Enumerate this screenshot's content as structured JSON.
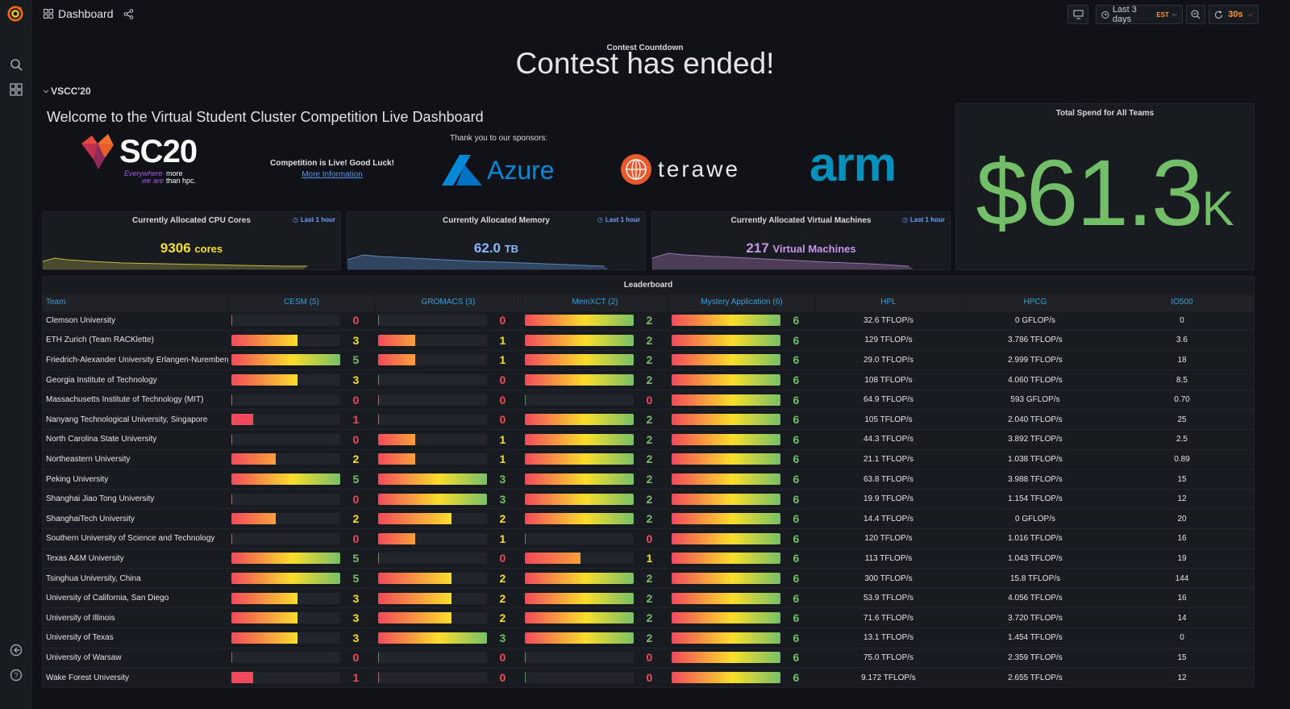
{
  "header": {
    "title": "Dashboard",
    "time_range": "Last 3 days",
    "timezone": "EST",
    "refresh": "30s"
  },
  "countdown": {
    "label": "Contest Countdown",
    "value": "Contest has ended!"
  },
  "row_title": "VSCC'20",
  "welcome": {
    "heading": "Welcome to the Virtual Student Cluster Competition Live Dashboard",
    "live_text": "Competition is Live! Good Luck!",
    "more_info": "More Information",
    "sponsors_label": "Thank you to our sponsors:",
    "logo_sc": "SC20",
    "logo_sc_tagline_1": "Everywhere",
    "logo_sc_tagline_2": "we are",
    "logo_sc_tagline_3": "more",
    "logo_sc_tagline_4": "than hpc.",
    "logo_azure": "Azure",
    "logo_terawe": "terawe",
    "logo_arm": "arm"
  },
  "stats": [
    {
      "title": "Currently Allocated CPU Cores",
      "link": "Last 1 hour",
      "value": "9306",
      "unit": "cores",
      "color": "#fade2a",
      "spark_color": "#6b6b3a"
    },
    {
      "title": "Currently Allocated Memory",
      "link": "Last 1 hour",
      "value": "62.0",
      "unit": "TB",
      "color": "#8ab8ff",
      "spark_color": "#3d5574"
    },
    {
      "title": "Currently Allocated Virtual Machines",
      "link": "Last 1 hour",
      "value": "217",
      "unit": "Virtual Machines",
      "color": "#ca95e5",
      "spark_color": "#5e4a6b"
    }
  ],
  "spend": {
    "title": "Total Spend for All Teams",
    "value": "$61.3",
    "suffix": "K"
  },
  "leaderboard": {
    "title": "Leaderboard",
    "columns": [
      "Team",
      "CESM (5)",
      "GROMACS (3)",
      "MemXCT (2)",
      "Mystery Application (6)",
      "HPL",
      "HPCG",
      "IO500"
    ],
    "maxima": [
      5,
      3,
      2,
      6
    ],
    "rows": [
      {
        "team": "Clemson University",
        "scores": [
          0,
          0,
          2,
          6
        ],
        "hpl": "32.6 TFLOP/s",
        "hpcg": "0 GFLOP/s",
        "io500": "0"
      },
      {
        "team": "ETH Zurich (Team RACKlette)",
        "scores": [
          3,
          1,
          2,
          6
        ],
        "hpl": "129 TFLOP/s",
        "hpcg": "3.786 TFLOP/s",
        "io500": "3.6"
      },
      {
        "team": "Friedrich-Alexander University Erlangen-Nuremberg",
        "scores": [
          5,
          1,
          2,
          6
        ],
        "hpl": "29.0 TFLOP/s",
        "hpcg": "2.999 TFLOP/s",
        "io500": "18"
      },
      {
        "team": "Georgia Institute of Technology",
        "scores": [
          3,
          0,
          2,
          6
        ],
        "hpl": "108 TFLOP/s",
        "hpcg": "4.060 TFLOP/s",
        "io500": "8.5"
      },
      {
        "team": "Massachusetts Institute of Technology (MIT)",
        "scores": [
          0,
          0,
          0,
          6
        ],
        "hpl": "64.9 TFLOP/s",
        "hpcg": "593 GFLOP/s",
        "io500": "0.70"
      },
      {
        "team": "Nanyang Technological University, Singapore",
        "scores": [
          1,
          0,
          2,
          6
        ],
        "hpl": "105 TFLOP/s",
        "hpcg": "2.040 TFLOP/s",
        "io500": "25"
      },
      {
        "team": "North Carolina State University",
        "scores": [
          0,
          1,
          2,
          6
        ],
        "hpl": "44.3 TFLOP/s",
        "hpcg": "3.892 TFLOP/s",
        "io500": "2.5"
      },
      {
        "team": "Northeastern University",
        "scores": [
          2,
          1,
          2,
          6
        ],
        "hpl": "21.1 TFLOP/s",
        "hpcg": "1.038 TFLOP/s",
        "io500": "0.89"
      },
      {
        "team": "Peking University",
        "scores": [
          5,
          3,
          2,
          6
        ],
        "hpl": "63.8 TFLOP/s",
        "hpcg": "3.988 TFLOP/s",
        "io500": "15"
      },
      {
        "team": "Shanghai Jiao Tong University",
        "scores": [
          0,
          3,
          2,
          6
        ],
        "hpl": "19.9 TFLOP/s",
        "hpcg": "1.154 TFLOP/s",
        "io500": "12"
      },
      {
        "team": "ShanghaiTech University",
        "scores": [
          2,
          2,
          2,
          6
        ],
        "hpl": "14.4 TFLOP/s",
        "hpcg": "0 GFLOP/s",
        "io500": "20"
      },
      {
        "team": "Southern University of Science and Technology",
        "scores": [
          0,
          1,
          0,
          6
        ],
        "hpl": "120 TFLOP/s",
        "hpcg": "1.016 TFLOP/s",
        "io500": "16"
      },
      {
        "team": "Texas A&M University",
        "scores": [
          5,
          0,
          1,
          6
        ],
        "hpl": "113 TFLOP/s",
        "hpcg": "1.043 TFLOP/s",
        "io500": "19"
      },
      {
        "team": "Tsinghua University, China",
        "scores": [
          5,
          2,
          2,
          6
        ],
        "hpl": "300 TFLOP/s",
        "hpcg": "15.8 TFLOP/s",
        "io500": "144"
      },
      {
        "team": "University of California, San Diego",
        "scores": [
          3,
          2,
          2,
          6
        ],
        "hpl": "53.9 TFLOP/s",
        "hpcg": "4.056 TFLOP/s",
        "io500": "16"
      },
      {
        "team": "University of Illinois",
        "scores": [
          3,
          2,
          2,
          6
        ],
        "hpl": "71.6 TFLOP/s",
        "hpcg": "3.720 TFLOP/s",
        "io500": "14"
      },
      {
        "team": "University of Texas",
        "scores": [
          3,
          3,
          2,
          6
        ],
        "hpl": "13.1 TFLOP/s",
        "hpcg": "1.454 TFLOP/s",
        "io500": "0"
      },
      {
        "team": "University of Warsaw",
        "scores": [
          0,
          0,
          0,
          6
        ],
        "hpl": "75.0 TFLOP/s",
        "hpcg": "2.359 TFLOP/s",
        "io500": "15"
      },
      {
        "team": "Wake Forest University",
        "scores": [
          1,
          0,
          0,
          6
        ],
        "hpl": "9.172 TFLOP/s",
        "hpcg": "2.655 TFLOP/s",
        "io500": "12"
      }
    ]
  }
}
